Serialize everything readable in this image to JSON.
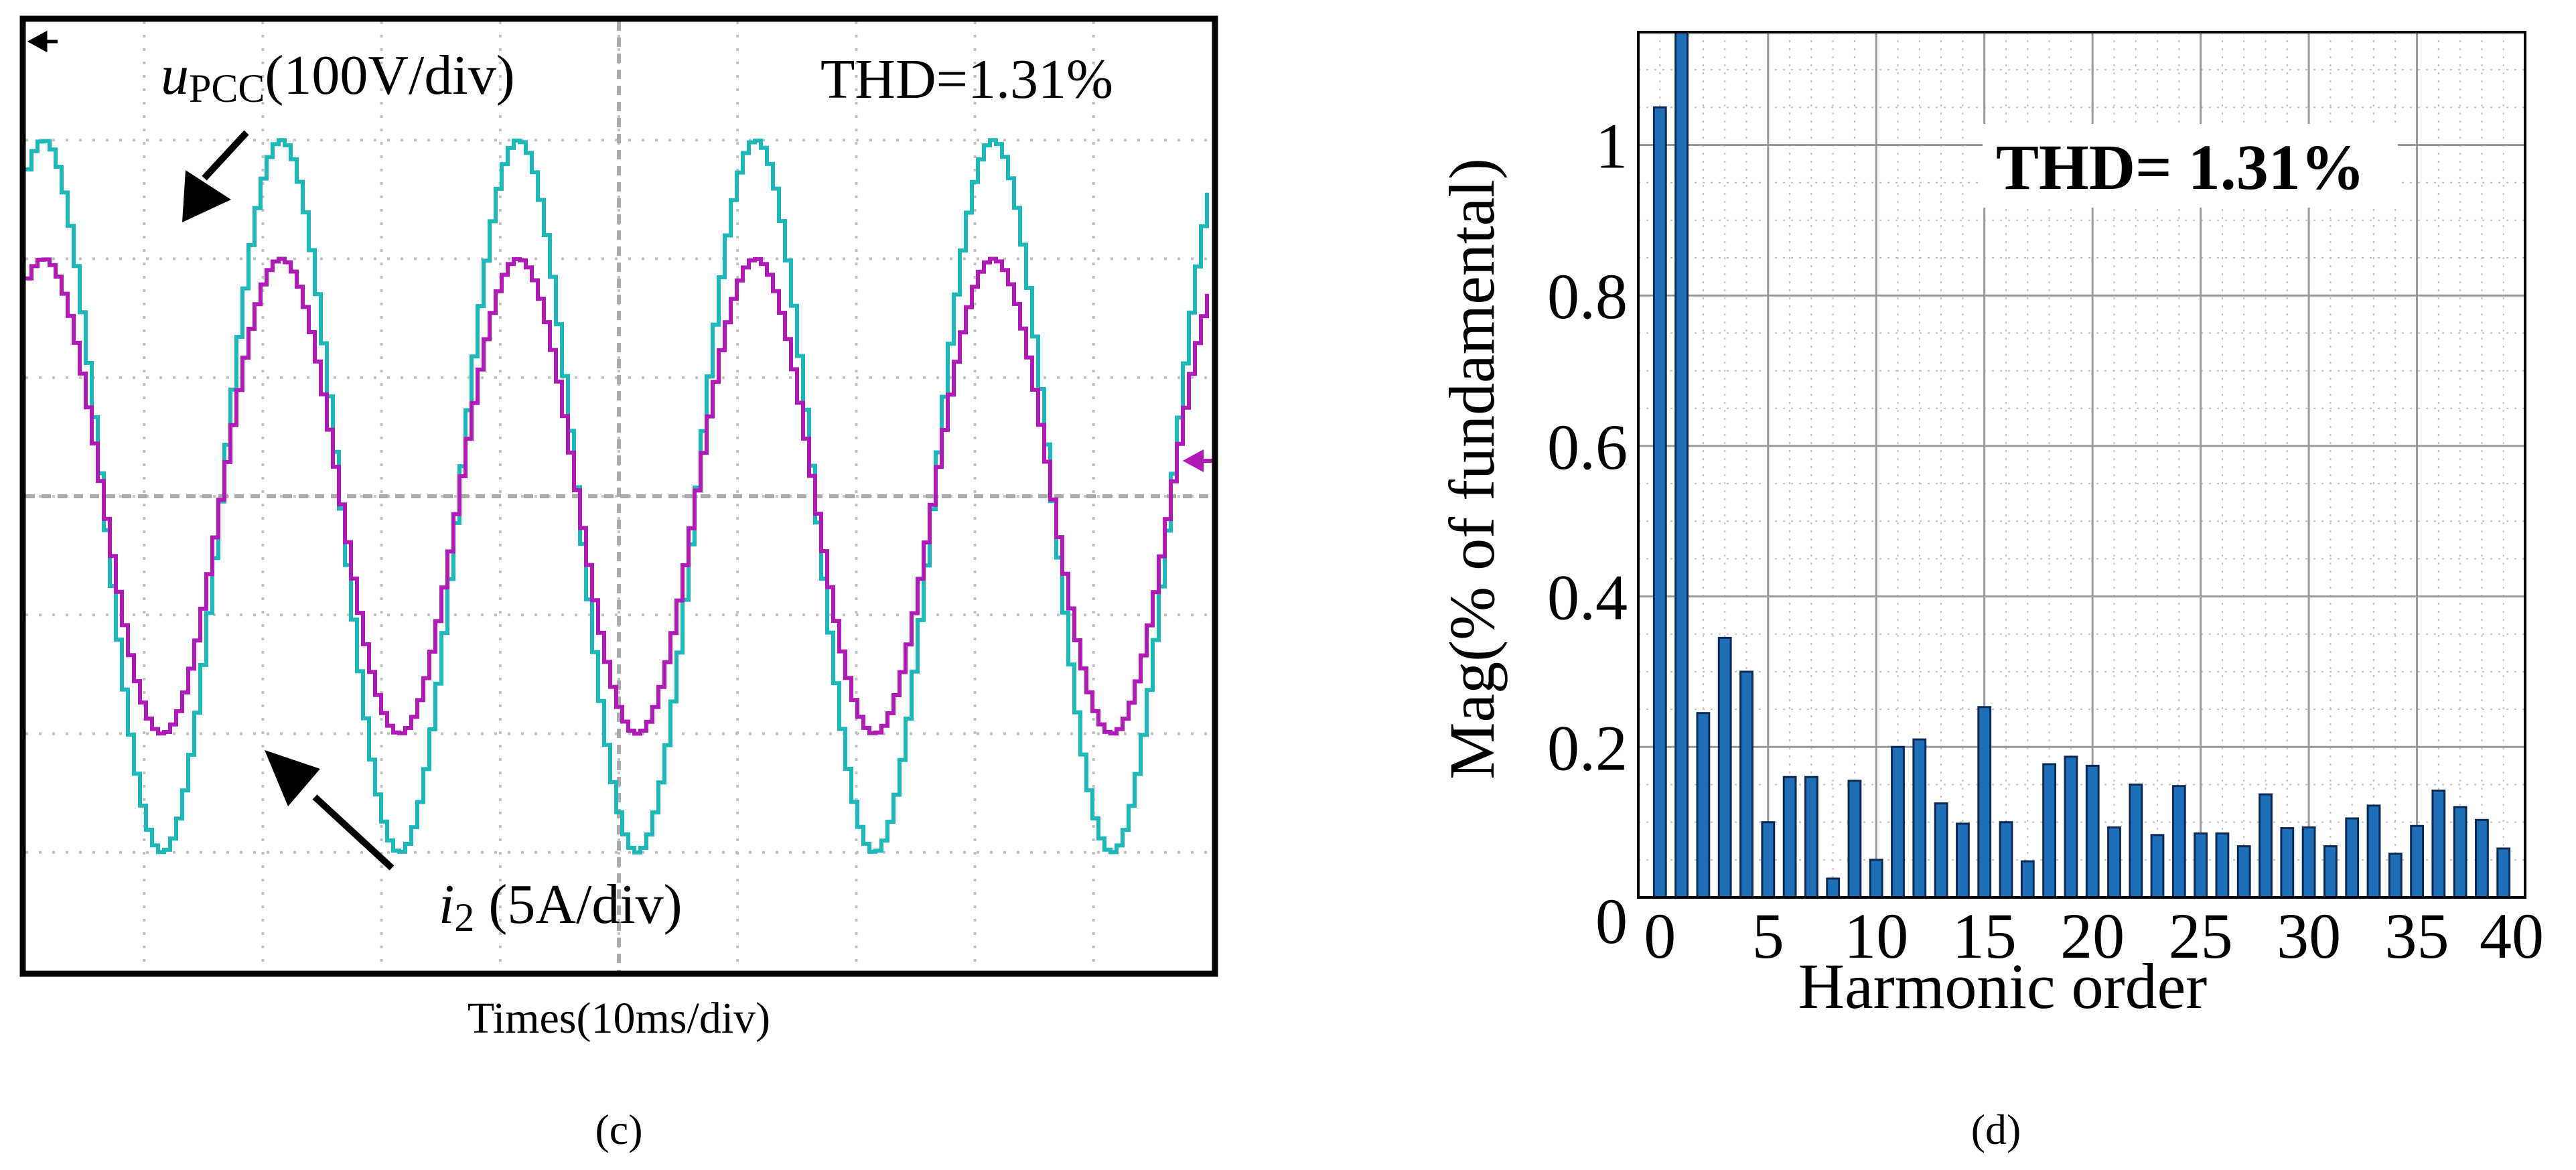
{
  "colors": {
    "voltage": "#1EB8B8",
    "current": "#B01AB6",
    "bar_fill": "#1F6FB8",
    "bar_stroke": "#0A2A55",
    "dot_grid": "#C2C2C2",
    "major_grid": "#9A9A9A"
  },
  "chart_data": [
    {
      "type": "line",
      "title": "THD=1.31%",
      "xlabel": "Times(10ms/div)",
      "ylabel": "",
      "panel_label": "(c)",
      "series": [
        {
          "name": "uPCC",
          "label_main": "u",
          "label_sub": "PCC",
          "label_unit": "(100V/div)",
          "amplitude_div": 3.0,
          "frequency_hz": 50,
          "phase_deg": 0
        },
        {
          "name": "i2",
          "label_main": "i",
          "label_sub": "2",
          "label_unit": " (5A/div)",
          "amplitude_div": 2.0,
          "frequency_hz": 50,
          "phase_deg": 0
        }
      ],
      "x_divisions": 10,
      "y_divisions": 8,
      "time_per_div_ms": 10,
      "x_range_ms": [
        0,
        100
      ],
      "y_range_div": [
        -4,
        4
      ]
    },
    {
      "type": "bar",
      "title": "THD= 1.31%",
      "xlabel": "Harmonic order",
      "ylabel": "Mag(% of fundamental)",
      "panel_label": "(d)",
      "x": [
        0,
        1,
        2,
        3,
        4,
        5,
        6,
        7,
        8,
        9,
        10,
        11,
        12,
        13,
        14,
        15,
        16,
        17,
        18,
        19,
        20,
        21,
        22,
        23,
        24,
        25,
        26,
        27,
        28,
        29,
        30,
        31,
        32,
        33,
        34,
        35,
        36,
        37,
        38,
        39
      ],
      "values": [
        1.05,
        1.2,
        0.245,
        0.345,
        0.3,
        0.1,
        0.16,
        0.16,
        0.025,
        0.155,
        0.05,
        0.2,
        0.21,
        0.125,
        0.098,
        0.253,
        0.1,
        0.048,
        0.177,
        0.187,
        0.175,
        0.093,
        0.15,
        0.083,
        0.148,
        0.085,
        0.085,
        0.068,
        0.137,
        0.092,
        0.093,
        0.068,
        0.105,
        0.122,
        0.058,
        0.095,
        0.142,
        0.12,
        0.103,
        0.065
      ],
      "xlim": [
        -1,
        40
      ],
      "ylim": [
        0,
        1.15
      ],
      "xticks": [
        "0",
        "5",
        "10",
        "15",
        "20",
        "25",
        "30",
        "35",
        "40"
      ],
      "yticks": [
        "0",
        "0.2",
        "0.4",
        "0.6",
        "0.8",
        "1"
      ]
    }
  ]
}
